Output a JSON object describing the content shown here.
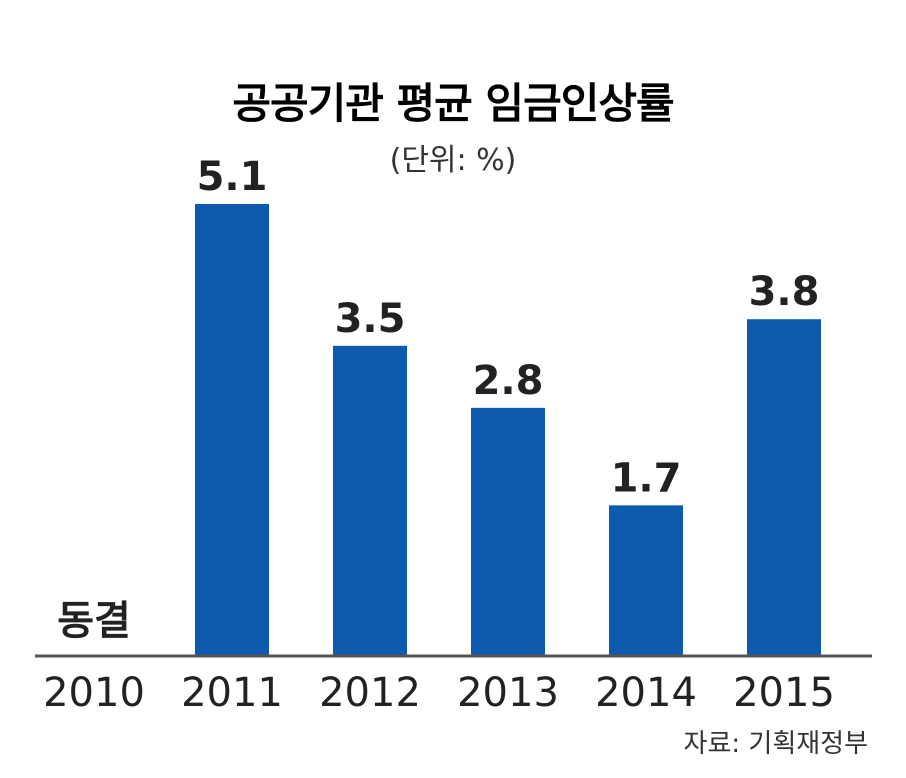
{
  "chart_data": {
    "type": "bar",
    "title": "공공기관 평균 임금인상률",
    "subtitle": "(단위: %)",
    "categories": [
      "2010",
      "2011",
      "2012",
      "2013",
      "2014",
      "2015"
    ],
    "values": [
      0,
      5.1,
      3.5,
      2.8,
      1.7,
      3.8
    ],
    "value_labels": [
      "동결",
      "5.1",
      "3.5",
      "2.8",
      "1.7",
      "3.8"
    ],
    "ylim": [
      0,
      5.1
    ],
    "grid": false,
    "legend": "none",
    "bar_color": "#0d5aae",
    "axis_color": "#555555"
  },
  "source": "자료: 기획재정부"
}
